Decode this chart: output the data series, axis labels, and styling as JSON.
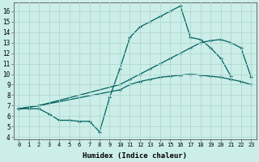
{
  "xlabel": "Humidex (Indice chaleur)",
  "bg_color": "#cceee8",
  "grid_color": "#b0d8d0",
  "line_color": "#006060",
  "xlim": [
    -0.5,
    23.5
  ],
  "ylim": [
    3.8,
    16.8
  ],
  "xticks": [
    0,
    1,
    2,
    3,
    4,
    5,
    6,
    7,
    8,
    9,
    10,
    11,
    12,
    13,
    14,
    15,
    16,
    17,
    18,
    19,
    20,
    21,
    22,
    23
  ],
  "yticks": [
    4,
    5,
    6,
    7,
    8,
    9,
    10,
    11,
    12,
    13,
    14,
    15,
    16
  ],
  "line1_x": [
    0,
    1,
    2,
    3,
    4,
    5,
    6,
    7,
    8,
    9,
    10,
    11,
    12,
    13,
    14,
    15,
    16,
    17,
    18,
    19,
    20,
    21,
    22,
    23
  ],
  "line1_y": [
    6.7,
    6.7,
    6.7,
    6.2,
    5.6,
    5.6,
    5.5,
    5.5,
    4.5,
    7.8,
    10.5,
    13.5,
    14.5,
    15.0,
    15.5,
    16.0,
    16.5,
    13.5,
    13.3,
    12.5,
    11.5,
    9.8,
    null,
    null
  ],
  "line2_x": [
    0,
    2,
    10,
    11,
    12,
    13,
    14,
    15,
    16,
    17,
    18,
    19,
    20,
    21,
    22,
    23
  ],
  "line2_y": [
    6.7,
    7.0,
    9.0,
    9.5,
    10.0,
    10.5,
    11.0,
    11.5,
    12.0,
    12.5,
    13.0,
    13.2,
    13.3,
    13.0,
    12.5,
    9.7
  ],
  "line3_x": [
    0,
    2,
    10,
    11,
    12,
    13,
    14,
    15,
    16,
    17,
    18,
    19,
    20,
    21,
    22,
    23
  ],
  "line3_y": [
    6.7,
    7.0,
    8.5,
    9.0,
    9.3,
    9.5,
    9.7,
    9.8,
    9.9,
    10.0,
    9.9,
    9.8,
    9.7,
    9.5,
    9.3,
    9.0
  ]
}
